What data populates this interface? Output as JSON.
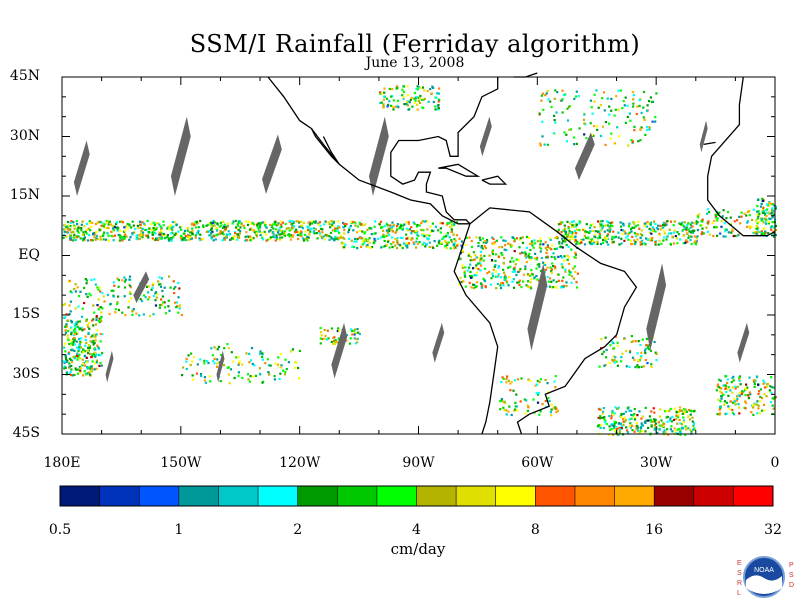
{
  "title": "SSM/I Rainfall (Ferriday algorithm)",
  "date": "June 13, 2008",
  "lat_labels": [
    "45N",
    "30N",
    "15N",
    "EQ",
    "15S",
    "30S",
    "45S"
  ],
  "lon_labels": [
    "180E",
    "150W",
    "120W",
    "90W",
    "60W",
    "30W",
    "0"
  ],
  "colorbar": {
    "tick_labels": [
      "0.5",
      "1",
      "2",
      "4",
      "8",
      "16",
      "32"
    ],
    "units": "cm/day",
    "colors": [
      "#001a7a",
      "#0033bb",
      "#0055ff",
      "#009999",
      "#00c8c8",
      "#00ffff",
      "#009900",
      "#00c800",
      "#00ff00",
      "#b3b300",
      "#e0e000",
      "#ffff00",
      "#ff5500",
      "#ff8800",
      "#ffaa00",
      "#990000",
      "#cc0000",
      "#ff0000"
    ]
  },
  "colors": {
    "coastline": "#000000",
    "swath_gap": "#666666",
    "frame": "#000000"
  },
  "logo": {
    "left_letters": "ESRL",
    "right_letters": "PSD",
    "center_text": "NOAA"
  }
}
